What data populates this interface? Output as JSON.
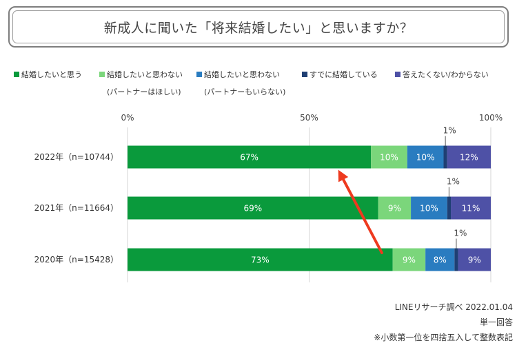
{
  "chart_data": {
    "type": "bar",
    "orientation": "horizontal",
    "stacked": true,
    "title": "新成人に聞いた「将来結婚したい」と思いますか？",
    "categories": [
      "2022年（n=10744）",
      "2021年（n=11664）",
      "2020年（n=15428）"
    ],
    "series": [
      {
        "name": "結婚したいと思う",
        "sub": "",
        "color": "#0a9a3c",
        "values": [
          67,
          69,
          73
        ],
        "labels": [
          "67%",
          "69%",
          "73%"
        ]
      },
      {
        "name": "結婚したいと思わない",
        "sub": "(パートナーはほしい)",
        "color": "#7bd67b",
        "values": [
          10,
          9,
          9
        ],
        "labels": [
          "10%",
          "9%",
          "9%"
        ]
      },
      {
        "name": "結婚したいと思わない",
        "sub": "(パートナーもいらない)",
        "color": "#2a7cc0",
        "values": [
          10,
          10,
          8
        ],
        "labels": [
          "10%",
          "10%",
          "8%"
        ]
      },
      {
        "name": "すでに結婚している",
        "sub": "",
        "color": "#1f3f73",
        "values": [
          1,
          1,
          1
        ],
        "labels": [
          "1%",
          "1%",
          "1%"
        ]
      },
      {
        "name": "答えたくない/わからない",
        "sub": "",
        "color": "#4e51a6",
        "values": [
          12,
          11,
          9
        ],
        "labels": [
          "12%",
          "11%",
          "9%"
        ]
      }
    ],
    "xlim": [
      0,
      100
    ],
    "xticks": [
      0,
      50,
      100
    ],
    "xtick_labels": [
      "0%",
      "50%",
      "100%"
    ],
    "grid": true,
    "legend_position": "top",
    "annotation": {
      "type": "arrow",
      "color": "#ee3a1f",
      "from_category": 2,
      "to_category": 0,
      "from_value": 70,
      "to_value": 58
    }
  },
  "footer": {
    "source": "LINEリサーチ調べ 2022.01.04",
    "answer_type": "単一回答",
    "note": "※小数第一位を四捨五入して整数表記"
  }
}
